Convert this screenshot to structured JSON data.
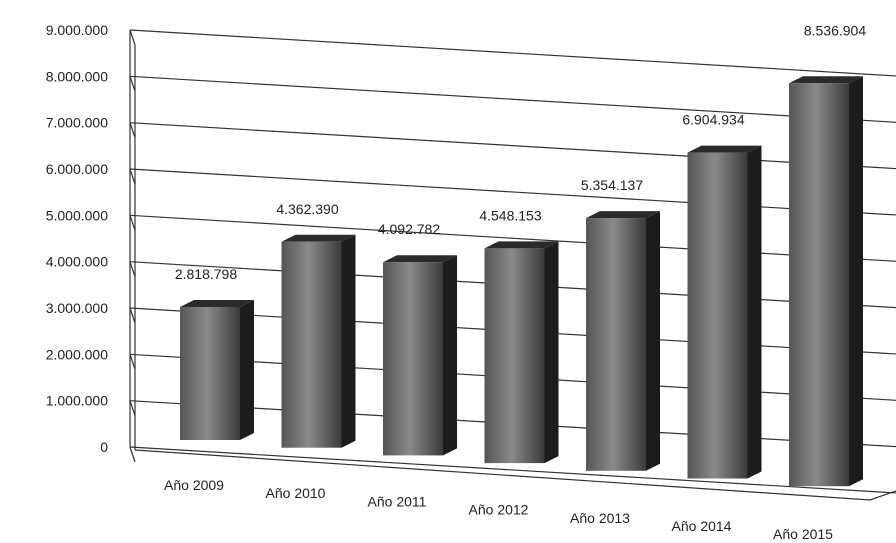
{
  "chart_data": {
    "type": "bar",
    "style": "3d-column",
    "categories": [
      "Año 2009",
      "Año 2010",
      "Año 2011",
      "Año 2012",
      "Año 2013",
      "Año 2014",
      "Año 2015"
    ],
    "values": [
      2818798,
      4362390,
      4092782,
      4548153,
      5354137,
      6904934,
      8536904
    ],
    "data_labels": [
      "2.818.798",
      "4.362.390",
      "4.092.782",
      "4.548.153",
      "5.354.137",
      "6.904.934",
      "8.536.904"
    ],
    "yticks": [
      "0",
      "1.000.000",
      "2.000.000",
      "3.000.000",
      "4.000.000",
      "5.000.000",
      "6.000.000",
      "7.000.000",
      "8.000.000",
      "9.000.000"
    ],
    "ylim": [
      0,
      9000000
    ],
    "grid": true,
    "colors": {
      "bar": "#3c3c3c",
      "bar_light": "#8c8c8c",
      "bar_top": "#2a2a2a",
      "bar_side": "#1c1c1c",
      "grid": "#333333"
    }
  }
}
